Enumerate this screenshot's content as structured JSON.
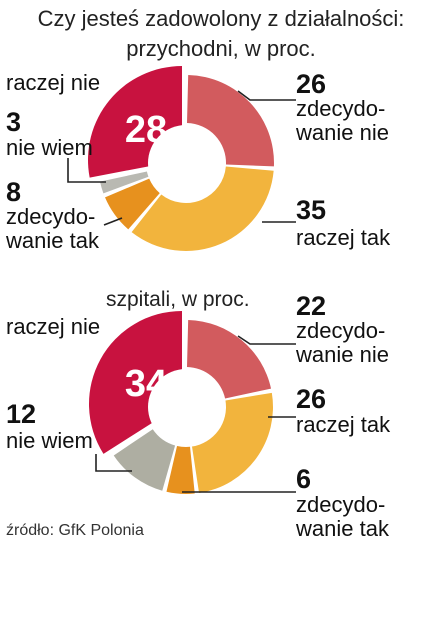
{
  "header": {
    "title_line1": "Czy jesteś zadowolony z działalności:",
    "title_line2": "przychodni, w proc."
  },
  "source": "źródło: GfK Polonia",
  "colors": {
    "raczej_nie": "#c8123f",
    "zdecydowanie_nie": "#d25b5e",
    "raczej_tak": "#f2b43d",
    "zdecydowanie_tak": "#e7911e",
    "nie_wiem_1": "#b9b9b2",
    "nie_wiem_2": "#aeaea2"
  },
  "chart_data": [
    {
      "type": "pie",
      "title": "przychodni, w proc.",
      "slices": [
        {
          "label": "raczej nie",
          "value": 28
        },
        {
          "label": "zdecydowanie nie",
          "value": 26
        },
        {
          "label": "raczej tak",
          "value": 35
        },
        {
          "label": "zdecydowanie tak",
          "value": 8
        },
        {
          "label": "nie wiem",
          "value": 3
        }
      ]
    },
    {
      "type": "pie",
      "title": "szpitali, w proc.",
      "slices": [
        {
          "label": "raczej nie",
          "value": 34
        },
        {
          "label": "zdecydowanie nie",
          "value": 22
        },
        {
          "label": "raczej tak",
          "value": 26
        },
        {
          "label": "zdecydowanie tak",
          "value": 6
        },
        {
          "label": "nie wiem",
          "value": 12
        }
      ]
    }
  ],
  "labels": {
    "chart1": {
      "raczej_nie": "raczej nie",
      "nie_wiem": "nie wiem",
      "zdec_tak_1": "zdecydo-",
      "zdec_tak_2": "wanie tak",
      "zdec_nie_1": "zdecydo-",
      "zdec_nie_2": "wanie nie",
      "raczej_tak": "raczej tak"
    },
    "chart2": {
      "raczej_nie": "raczej nie",
      "nie_wiem": "nie wiem",
      "zdec_nie_1": "zdecydo-",
      "zdec_nie_2": "wanie nie",
      "raczej_tak": "raczej tak",
      "zdec_tak_1": "zdecydo-",
      "zdec_tak_2": "wanie tak"
    }
  }
}
